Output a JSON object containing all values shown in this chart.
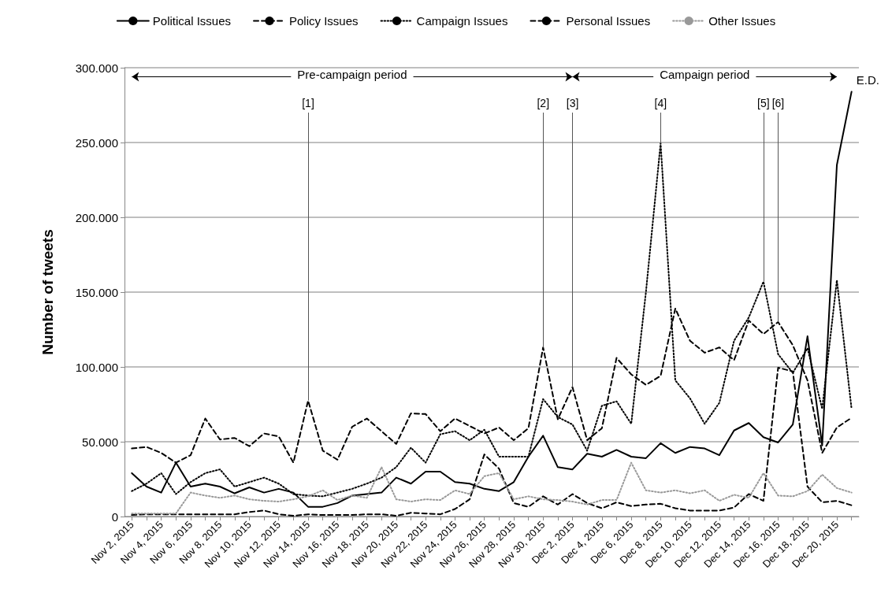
{
  "chart_data": {
    "type": "line",
    "ylabel": "Number of tweets",
    "categories": [
      "Nov 2, 2015",
      null,
      "Nov 4, 2015",
      null,
      "Nov 6, 2015",
      null,
      "Nov 8, 2015",
      null,
      "Nov 10, 2015",
      null,
      "Nov 12, 2015",
      null,
      "Nov 14, 2015",
      null,
      "Nov 16, 2015",
      null,
      "Nov 18, 2015",
      null,
      "Nov 20, 2015",
      null,
      "Nov 22, 2015",
      null,
      "Nov 24, 2015",
      null,
      "Nov 26, 2015",
      null,
      "Nov 28, 2015",
      null,
      "Nov 30, 2015",
      null,
      "Dec 2, 2015",
      null,
      "Dec 4, 2015",
      null,
      "Dec 6, 2015",
      null,
      "Dec 8, 2015",
      null,
      "Dec 10, 2015",
      null,
      "Dec 12, 2015",
      null,
      "Dec 14, 2015",
      null,
      "Dec 16, 2015",
      null,
      "Dec 18, 2015",
      null,
      "Dec 20, 2015",
      null
    ],
    "series": [
      {
        "name": "Political Issues",
        "color": "#000000",
        "line_style": "solid",
        "values": [
          29000,
          20000,
          16000,
          36000,
          20000,
          22000,
          20000,
          15500,
          19500,
          16000,
          18500,
          16000,
          6500,
          6500,
          9000,
          14000,
          15000,
          16000,
          26000,
          22000,
          30000,
          30000,
          23000,
          22000,
          18500,
          17000,
          23000,
          40000,
          54000,
          33000,
          31500,
          42000,
          40000,
          44500,
          40000,
          39000,
          49000,
          42500,
          46500,
          45500,
          41000,
          57500,
          62500,
          53000,
          49500,
          61500,
          120500,
          47500,
          235000,
          284000
        ]
      },
      {
        "name": "Policy Issues",
        "color": "#000000",
        "line_style": "dashed",
        "values": [
          45500,
          46500,
          42500,
          36000,
          41000,
          65500,
          51500,
          52500,
          47000,
          55500,
          53500,
          36000,
          77500,
          44000,
          38000,
          60000,
          65500,
          57000,
          48500,
          69000,
          68500,
          57000,
          65500,
          60500,
          55500,
          59500,
          51000,
          59000,
          113000,
          65000,
          86500,
          51000,
          59000,
          106000,
          95000,
          88000,
          94000,
          139000,
          117500,
          109500,
          113000,
          104500,
          131000,
          122000,
          130000,
          114500,
          91000,
          42500,
          59500,
          66000
        ]
      },
      {
        "name": "Campaign Issues",
        "color": "#000000",
        "line_style": "dotted",
        "values": [
          17000,
          22000,
          29000,
          15000,
          23000,
          29000,
          31500,
          20000,
          23000,
          26000,
          22000,
          15000,
          14000,
          13500,
          16000,
          18500,
          22000,
          26000,
          33000,
          46000,
          36000,
          55000,
          57000,
          51000,
          58000,
          40000,
          40000,
          40000,
          78500,
          66500,
          61500,
          44000,
          74000,
          77000,
          62000,
          150000,
          249500,
          91000,
          79000,
          62000,
          76000,
          117500,
          133000,
          157000,
          108500,
          96000,
          112500,
          72000,
          158000,
          72000
        ]
      },
      {
        "name": "Personal Issues",
        "color": "#000000",
        "line_style": "dashed",
        "values": [
          1000,
          1500,
          1500,
          1500,
          1500,
          1500,
          1500,
          1500,
          3000,
          4000,
          1500,
          500,
          1500,
          1000,
          1000,
          1000,
          1500,
          1500,
          500,
          2500,
          2000,
          1500,
          5000,
          11500,
          41500,
          32000,
          9000,
          6500,
          13500,
          8000,
          15000,
          9000,
          5500,
          9500,
          7000,
          8000,
          8500,
          5500,
          4000,
          4000,
          4000,
          6000,
          15000,
          10500,
          99500,
          97000,
          20000,
          9500,
          10500,
          7500
        ]
      },
      {
        "name": "Other Issues",
        "color": "#999999",
        "line_style": "dotted",
        "values": [
          2000,
          2000,
          2000,
          2000,
          16000,
          14000,
          12500,
          14000,
          11500,
          10500,
          10000,
          11500,
          13500,
          17500,
          11000,
          14000,
          12500,
          33000,
          11500,
          10000,
          11500,
          11000,
          17500,
          15000,
          27000,
          29000,
          11500,
          13500,
          11500,
          11000,
          10000,
          8000,
          11000,
          11000,
          36000,
          17500,
          16000,
          17500,
          15500,
          17500,
          10500,
          14500,
          12500,
          29000,
          14000,
          13500,
          17000,
          28000,
          19000,
          16000
        ]
      }
    ],
    "ylim": [
      0,
      300000
    ],
    "yticks": [
      {
        "value": 0,
        "label": "0"
      },
      {
        "value": 50000,
        "label": "50.000"
      },
      {
        "value": 100000,
        "label": "100.000"
      },
      {
        "value": 150000,
        "label": "150.000"
      },
      {
        "value": 200000,
        "label": "200.000"
      },
      {
        "value": 250000,
        "label": "250.000"
      },
      {
        "value": 300000,
        "label": "300.000"
      }
    ],
    "ref_lines": [
      {
        "axis": "x",
        "value": "Nov 14, 2015",
        "label": "[1]"
      },
      {
        "axis": "x",
        "value": "Nov 30, 2015",
        "label": "[2]"
      },
      {
        "axis": "x",
        "value": "Dec 2, 2015",
        "label": "[3]"
      },
      {
        "axis": "x",
        "value": "Dec 8, 2015",
        "label": "[4]"
      },
      {
        "axis": "x",
        "value": "Dec 16, 2015",
        "label": "[6]"
      }
    ],
    "annotations": [
      "Pre-campaign period",
      "Campaign period",
      "E.D.",
      {
        "text": "[5]",
        "y": 157000
      }
    ],
    "grid": "y",
    "legend": "top",
    "marker": "none"
  }
}
